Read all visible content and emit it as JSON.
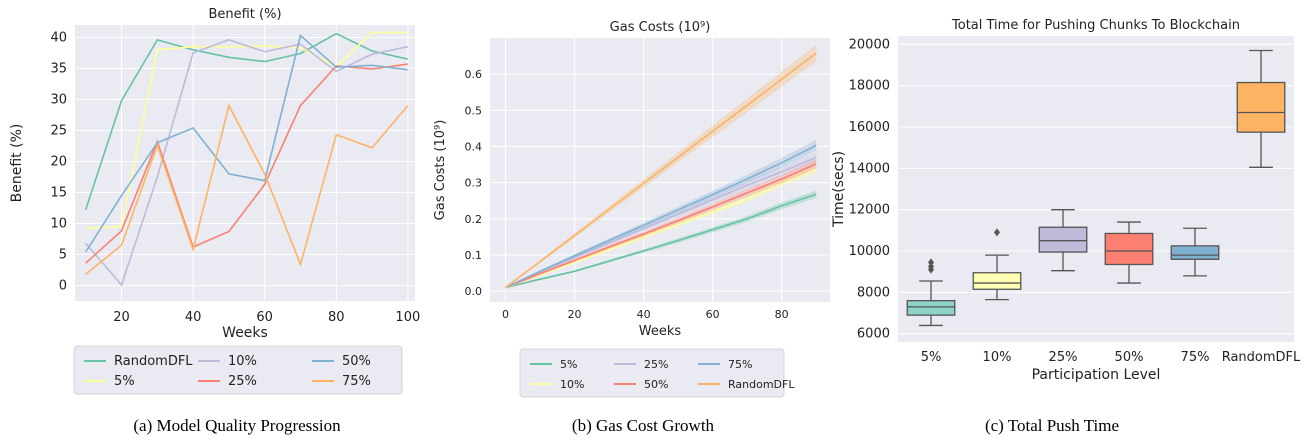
{
  "chart_data": [
    {
      "type": "line",
      "title": "Benefit (%)",
      "xlabel": "Weeks",
      "ylabel": "Benefit (%)",
      "xlim": [
        7,
        102
      ],
      "ylim": [
        -2.5,
        42
      ],
      "xticks": [
        20,
        40,
        60,
        80,
        100
      ],
      "yticks": [
        0,
        5,
        10,
        15,
        20,
        25,
        30,
        35,
        40
      ],
      "caption": "(a) Model Quality Progression",
      "legend_position": "bottom",
      "x": [
        10,
        20,
        30,
        40,
        50,
        60,
        70,
        80,
        90,
        100
      ],
      "series": [
        {
          "name": "RandomDFL",
          "color": "#66c2a5",
          "values": [
            12.2,
            29.8,
            39.6,
            38.0,
            36.8,
            36.1,
            37.4,
            40.6,
            37.8,
            36.5
          ]
        },
        {
          "name": "5%",
          "color": "#ffff99",
          "values": [
            9.2,
            9.5,
            38.0,
            38.5,
            38.5,
            38.6,
            38.3,
            35.3,
            40.8,
            40.8
          ]
        },
        {
          "name": "10%",
          "color": "#bebada",
          "values": [
            6.8,
            0.1,
            17.5,
            37.5,
            39.6,
            37.7,
            38.9,
            34.5,
            37.3,
            38.5
          ]
        },
        {
          "name": "25%",
          "color": "#fb8072",
          "values": [
            3.6,
            8.8,
            23.2,
            6.2,
            8.7,
            16.3,
            29.0,
            35.4,
            34.9,
            35.7
          ]
        },
        {
          "name": "50%",
          "color": "#80b1d3",
          "values": [
            5.4,
            14.5,
            23.0,
            25.4,
            18.0,
            16.9,
            40.3,
            35.2,
            35.5,
            34.8
          ]
        },
        {
          "name": "75%",
          "color": "#fdb462",
          "values": [
            1.8,
            6.5,
            22.6,
            5.8,
            29.0,
            18.0,
            3.4,
            24.3,
            22.2,
            29.0
          ]
        }
      ]
    },
    {
      "type": "line",
      "title": "Gas Costs (10⁹)",
      "xlabel": "Weeks",
      "ylabel": "Gas Costs (10⁹)",
      "xlim": [
        -4.5,
        94
      ],
      "ylim": [
        -0.03,
        0.7
      ],
      "xticks": [
        0,
        20,
        40,
        60,
        80
      ],
      "yticks": [
        0.0,
        0.1,
        0.2,
        0.3,
        0.4,
        0.5,
        0.6
      ],
      "caption": "(b) Gas Cost Growth",
      "legend_position": "bottom",
      "x": [
        0,
        10,
        20,
        30,
        40,
        50,
        60,
        70,
        80,
        90
      ],
      "series": [
        {
          "name": "5%",
          "color": "#66c2a5",
          "values": [
            0.01,
            0.033,
            0.055,
            0.083,
            0.111,
            0.14,
            0.17,
            0.2,
            0.236,
            0.268
          ]
        },
        {
          "name": "10%",
          "color": "#ffff99",
          "values": [
            0.01,
            0.045,
            0.08,
            0.115,
            0.15,
            0.185,
            0.22,
            0.255,
            0.3,
            0.338
          ]
        },
        {
          "name": "25%",
          "color": "#bebada",
          "values": [
            0.01,
            0.052,
            0.093,
            0.133,
            0.173,
            0.213,
            0.253,
            0.293,
            0.33,
            0.37
          ]
        },
        {
          "name": "50%",
          "color": "#fb8072",
          "values": [
            0.01,
            0.048,
            0.085,
            0.122,
            0.158,
            0.195,
            0.233,
            0.272,
            0.31,
            0.352
          ]
        },
        {
          "name": "75%",
          "color": "#80b1d3",
          "values": [
            0.01,
            0.055,
            0.098,
            0.14,
            0.182,
            0.225,
            0.267,
            0.31,
            0.355,
            0.403
          ]
        },
        {
          "name": "RandomDFL",
          "color": "#fdb462",
          "values": [
            0.01,
            0.082,
            0.154,
            0.226,
            0.298,
            0.37,
            0.442,
            0.514,
            0.586,
            0.658
          ]
        }
      ]
    },
    {
      "type": "box",
      "title": "Total Time for Pushing Chunks To Blockchain",
      "xlabel": "Participation Level",
      "ylabel": "Time(secs)",
      "ylim": [
        5600,
        20400
      ],
      "yticks": [
        6000,
        8000,
        10000,
        12000,
        14000,
        16000,
        18000,
        20000
      ],
      "caption": "(c) Total Push Time",
      "categories": [
        "5%",
        "10%",
        "25%",
        "50%",
        "75%",
        "RandomDFL"
      ],
      "boxes": [
        {
          "color": "#8dd3c7",
          "whislo": 6400,
          "q1": 6900,
          "med": 7300,
          "q3": 7600,
          "whishi": 8550,
          "fliers": [
            9100,
            9250,
            9450
          ]
        },
        {
          "color": "#ffffb3",
          "whislo": 7650,
          "q1": 8150,
          "med": 8450,
          "q3": 8950,
          "whishi": 9800,
          "fliers": [
            10900
          ]
        },
        {
          "color": "#bebada",
          "whislo": 9050,
          "q1": 9950,
          "med": 10500,
          "q3": 11150,
          "whishi": 12000,
          "fliers": []
        },
        {
          "color": "#fb8072",
          "whislo": 8450,
          "q1": 9350,
          "med": 10000,
          "q3": 10850,
          "whishi": 11400,
          "fliers": []
        },
        {
          "color": "#80b1d3",
          "whislo": 8800,
          "q1": 9600,
          "med": 9800,
          "q3": 10250,
          "whishi": 11100,
          "fliers": []
        },
        {
          "color": "#fdb462",
          "whislo": 14050,
          "q1": 15750,
          "med": 16700,
          "q3": 18150,
          "whishi": 19700,
          "fliers": []
        }
      ]
    }
  ]
}
